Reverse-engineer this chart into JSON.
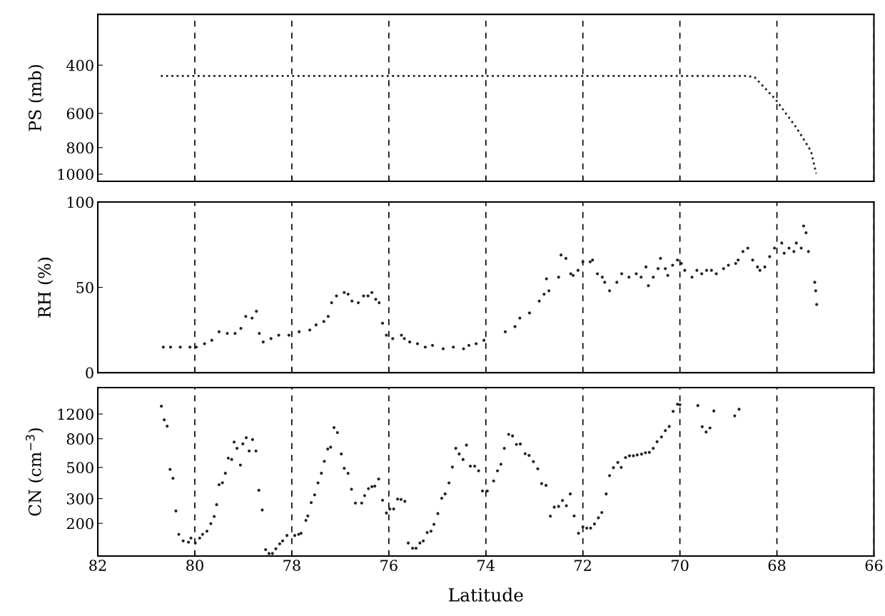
{
  "chart_data": [
    {
      "type": "line",
      "ylabel": "PS (mb)",
      "log": "y",
      "xlim": [
        82,
        66
      ],
      "xticks": [
        82,
        80,
        78,
        76,
        74,
        72,
        70,
        68,
        66
      ],
      "ylim": [
        1062,
        261
      ],
      "yticks": [
        400,
        600,
        800,
        1000
      ],
      "grid": "x",
      "tick_labels": "y",
      "line_style": "dotted",
      "marker": "none",
      "series": [
        {
          "color": "#222222",
          "x": [
            80.7,
            68.6,
            68.46,
            68.03,
            67.6,
            67.3,
            67.19
          ],
          "values": [
            438,
            438,
            443,
            533,
            676,
            822,
            995
          ]
        }
      ]
    },
    {
      "type": "scatter",
      "ylabel": "RH (%)",
      "xlim": [
        82,
        66
      ],
      "xticks": [
        82,
        80,
        78,
        76,
        74,
        72,
        70,
        68,
        66
      ],
      "ylim": [
        0,
        100
      ],
      "yticks": [
        0,
        50,
        100
      ],
      "grid": "x",
      "tick_labels": "y",
      "marker": "circle",
      "series": [
        {
          "color": "#222222",
          "x": [
            80.65,
            80.5,
            80.3,
            80.1,
            79.97,
            79.8,
            79.65,
            79.5,
            79.33,
            79.17,
            79.05,
            78.95,
            78.82,
            78.73,
            78.67,
            78.59,
            78.43,
            78.27,
            78.06,
            77.85,
            77.63,
            77.5,
            77.34,
            77.25,
            77.18,
            77.08,
            76.92,
            76.84,
            76.76,
            76.63,
            76.52,
            76.43,
            76.35,
            76.27,
            76.2,
            76.13,
            76.05,
            75.92,
            75.74,
            75.68,
            75.57,
            75.41,
            75.25,
            75.1,
            74.88,
            74.67,
            74.46,
            74.35,
            74.2,
            74.04,
            73.6,
            73.4,
            73.3,
            73.1,
            72.9,
            72.8,
            72.75,
            72.7,
            72.5,
            72.45,
            72.35,
            72.25,
            72.2,
            72.1,
            72.0,
            71.85,
            71.8,
            71.7,
            71.6,
            71.55,
            71.45,
            71.3,
            71.2,
            71.05,
            70.9,
            70.8,
            70.7,
            70.65,
            70.55,
            70.45,
            70.4,
            70.3,
            70.25,
            70.15,
            70.05,
            69.97,
            69.9,
            69.75,
            69.65,
            69.55,
            69.45,
            69.35,
            69.25,
            69.1,
            69.0,
            68.85,
            68.8,
            68.7,
            68.6,
            68.5,
            68.4,
            68.35,
            68.25,
            68.15,
            68.05,
            67.9,
            67.85,
            67.75,
            67.65,
            67.6,
            67.5,
            67.45,
            67.4,
            67.35,
            67.22,
            67.2,
            67.18
          ],
          "values": [
            15,
            15,
            15,
            15,
            15,
            17,
            19,
            24,
            23,
            23,
            26,
            33,
            32,
            36,
            23,
            18,
            20,
            22,
            22,
            24,
            25,
            28,
            30,
            33,
            41,
            45,
            47,
            46,
            42,
            41,
            45,
            45,
            47,
            43,
            41,
            29,
            22,
            20,
            22,
            20,
            18,
            17,
            15,
            16,
            14,
            15,
            14,
            16,
            17,
            19,
            24,
            27,
            32,
            35,
            42,
            46,
            55,
            48,
            56,
            69,
            67,
            58,
            57,
            60,
            65,
            65,
            66,
            58,
            56,
            53,
            48,
            53,
            58,
            56,
            58,
            56,
            62,
            51,
            56,
            61,
            67,
            61,
            57,
            63,
            66,
            64,
            60,
            56,
            60,
            58,
            60,
            60,
            58,
            61,
            63,
            64,
            66,
            71,
            73,
            66,
            62,
            60,
            62,
            68,
            73,
            76,
            70,
            73,
            71,
            76,
            73,
            86,
            82,
            71,
            53,
            48,
            40
          ]
        }
      ]
    },
    {
      "type": "scatter",
      "ylabel": "CN (cm$^{−3}$)",
      "xlabel": "Latitude",
      "log": "y",
      "xlim": [
        82,
        66
      ],
      "xticks": [
        82,
        80,
        78,
        76,
        74,
        72,
        70,
        68,
        66
      ],
      "ylim": [
        117,
        1850
      ],
      "yticks": [
        200,
        300,
        500,
        800,
        1200
      ],
      "grid": "x",
      "marker": "circle",
      "series": [
        {
          "color": "#222222",
          "x": [
            80.69,
            80.63,
            80.57,
            80.51,
            80.45,
            80.39,
            80.33,
            80.24,
            80.13,
            80.08,
            79.99,
            79.9,
            79.84,
            79.75,
            79.67,
            79.6,
            79.55,
            79.5,
            79.43,
            79.37,
            79.31,
            79.24,
            79.19,
            79.13,
            79.06,
            79.01,
            78.94,
            78.88,
            78.81,
            78.74,
            78.68,
            78.61,
            78.54,
            78.47,
            78.4,
            78.33,
            78.25,
            78.19,
            78.1,
            77.94,
            77.86,
            77.81,
            77.71,
            77.67,
            77.6,
            77.53,
            77.46,
            77.39,
            77.33,
            77.26,
            77.2,
            77.13,
            77.06,
            76.98,
            76.92,
            76.84,
            76.77,
            76.69,
            76.56,
            76.5,
            76.42,
            76.35,
            76.29,
            76.21,
            76.13,
            76.05,
            75.98,
            75.9,
            75.82,
            75.75,
            75.67,
            75.6,
            75.51,
            75.44,
            75.36,
            75.29,
            75.21,
            75.13,
            75.07,
            74.99,
            74.91,
            74.84,
            74.76,
            74.69,
            74.62,
            74.55,
            74.47,
            74.4,
            74.32,
            74.23,
            74.15,
            74.07,
            73.97,
            73.84,
            73.76,
            73.69,
            73.62,
            73.53,
            73.45,
            73.37,
            73.29,
            73.19,
            73.11,
            73.02,
            72.93,
            72.85,
            72.76,
            72.67,
            72.59,
            72.5,
            72.42,
            72.34,
            72.26,
            72.18,
            72.09,
            72.0,
            71.92,
            71.84,
            71.76,
            71.68,
            71.61,
            71.52,
            71.45,
            71.37,
            71.28,
            71.21,
            71.12,
            71.04,
            70.96,
            70.88,
            70.79,
            70.71,
            70.63,
            70.55,
            70.47,
            70.38,
            70.3,
            70.22,
            70.14,
            70.05,
            70.0,
            69.63,
            69.54,
            69.46,
            69.38,
            69.3,
            68.87,
            68.78
          ],
          "values": [
            1365,
            1091,
            984,
            485,
            419,
            245,
            167,
            150,
            147,
            157,
            145,
            157,
            167,
            176,
            199,
            224,
            272,
            377,
            389,
            455,
            582,
            570,
            758,
            684,
            520,
            736,
            814,
            655,
            790,
            655,
            344,
            249,
            130,
            122,
            122,
            132,
            143,
            150,
            164,
            164,
            167,
            170,
            210,
            226,
            281,
            319,
            388,
            455,
            553,
            676,
            697,
            961,
            885,
            624,
            493,
            454,
            350,
            279,
            279,
            315,
            353,
            365,
            368,
            414,
            292,
            237,
            253,
            253,
            298,
            296,
            287,
            145,
            133,
            133,
            145,
            150,
            172,
            176,
            197,
            235,
            302,
            324,
            388,
            503,
            684,
            624,
            570,
            721,
            511,
            511,
            473,
            340,
            340,
            401,
            473,
            527,
            684,
            860,
            838,
            729,
            735,
            626,
            609,
            550,
            489,
            384,
            373,
            225,
            261,
            264,
            291,
            267,
            324,
            226,
            170,
            189,
            185,
            185,
            198,
            219,
            239,
            324,
            437,
            498,
            543,
            500,
            588,
            605,
            605,
            614,
            622,
            636,
            640,
            684,
            762,
            824,
            914,
            979,
            1254,
            1409,
            1397,
            1378,
            974,
            894,
            955,
            1262,
            1164,
            1298
          ]
        }
      ]
    }
  ]
}
